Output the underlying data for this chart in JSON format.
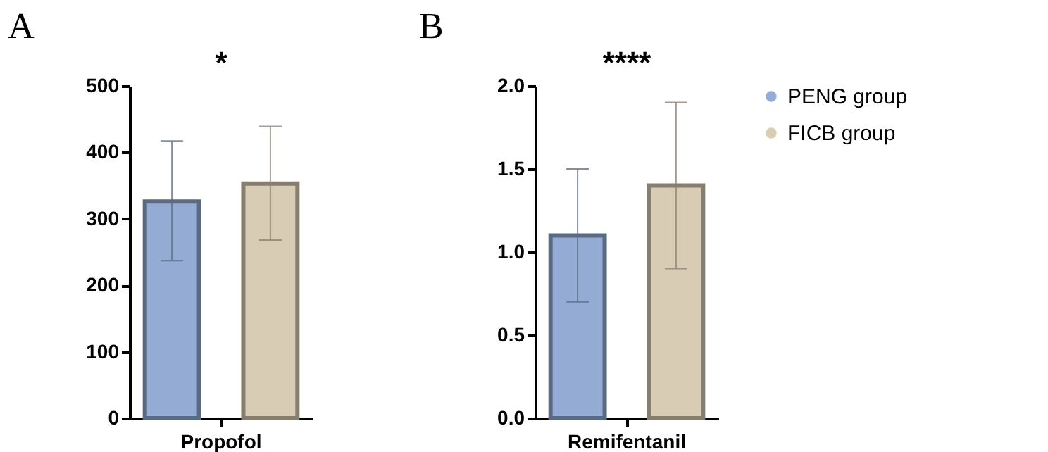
{
  "chart_data": [
    {
      "type": "bar",
      "title": "A",
      "categories": [
        "Propofol"
      ],
      "series": [
        {
          "name": "PENG group",
          "color": "#94acd4",
          "values": [
            326
          ],
          "errors": [
            [
              237,
              417
            ]
          ]
        },
        {
          "name": "FICB group",
          "color": "#d9ccb4",
          "values": [
            353
          ],
          "errors": [
            [
              268,
              439
            ]
          ]
        }
      ],
      "ylim": [
        0,
        500
      ],
      "yticks": [
        0,
        100,
        200,
        300,
        400,
        500
      ],
      "grid": false,
      "legend": "right",
      "annotations": [
        "*"
      ]
    },
    {
      "type": "bar",
      "title": "B",
      "categories": [
        "Remifentanil"
      ],
      "series": [
        {
          "name": "PENG group",
          "color": "#94acd4",
          "values": [
            1.1
          ],
          "errors": [
            [
              0.7,
              1.5
            ]
          ]
        },
        {
          "name": "FICB group",
          "color": "#d9ccb4",
          "values": [
            1.4
          ],
          "errors": [
            [
              0.9,
              1.9
            ]
          ]
        }
      ],
      "ylim": [
        0,
        2.0
      ],
      "yticks": [
        {
          "value": 0,
          "label": "0.0"
        },
        0.5,
        {
          "value": 1,
          "label": "1.0"
        },
        1.5,
        {
          "value": 2,
          "label": "2.0"
        }
      ],
      "grid": false,
      "legend": "right",
      "annotations": [
        "****"
      ]
    }
  ]
}
